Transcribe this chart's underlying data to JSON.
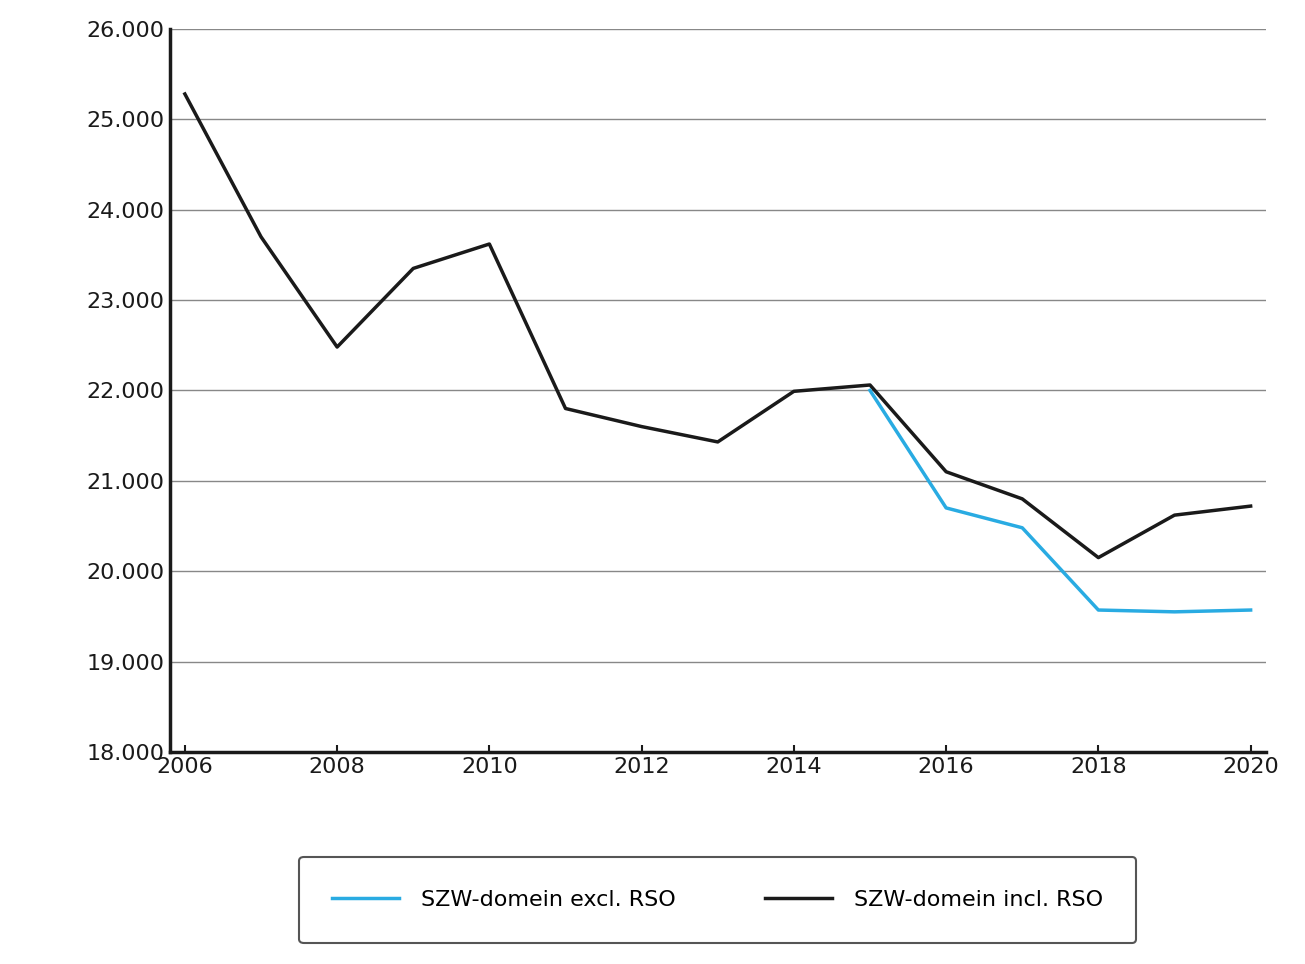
{
  "incl_rso_x": [
    2006,
    2007,
    2008,
    2009,
    2010,
    2011,
    2012,
    2013,
    2014,
    2015,
    2016,
    2017,
    2018,
    2019,
    2020
  ],
  "incl_rso_y": [
    25280,
    23700,
    22480,
    23350,
    23620,
    21800,
    21600,
    21430,
    21990,
    22060,
    21100,
    20800,
    20150,
    20620,
    20720
  ],
  "excl_rso_x": [
    2015,
    2016,
    2017,
    2018,
    2019,
    2020
  ],
  "excl_rso_y": [
    22000,
    20700,
    20480,
    19570,
    19550,
    19570
  ],
  "incl_color": "#1a1a1a",
  "excl_color": "#29ABE2",
  "line_width": 2.5,
  "ylim": [
    18000,
    26000
  ],
  "xlim": [
    2006,
    2020
  ],
  "ytick_step": 1000,
  "xticks": [
    2006,
    2008,
    2010,
    2012,
    2014,
    2016,
    2018,
    2020
  ],
  "legend_excl_label": "SZW-domein excl. RSO",
  "legend_incl_label": "SZW-domein incl. RSO",
  "background_color": "#ffffff",
  "grid_color": "#888888",
  "axis_color": "#1a1a1a",
  "legend_box_color": "#ffffff",
  "legend_box_edge": "#555555",
  "spine_linewidth": 2.5,
  "tick_fontsize": 16,
  "legend_fontsize": 16
}
